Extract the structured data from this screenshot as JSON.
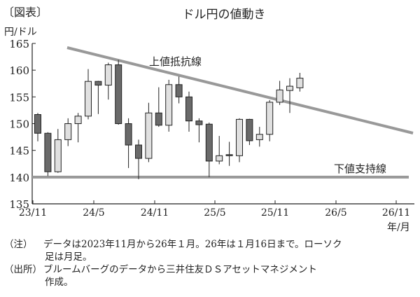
{
  "figure_label": "〔図表〕",
  "title": "ドル円の値動き",
  "y_unit": "円/ドル",
  "x_unit": "年/月",
  "annotations": {
    "resistance": "上値抵抗線",
    "support": "下値支持線"
  },
  "notes": [
    {
      "tag": "（注）",
      "text": "データは2023年11月から26年１月。26年は１月16日まで。ローソク",
      "cont": "足は月足。"
    },
    {
      "tag": "（出所）",
      "text": "ブルームバーグのデータから三井住友ＤＳアセットマネジメント",
      "cont": "作成。"
    }
  ],
  "colors": {
    "up_fill": "#e0e0e0",
    "down_fill": "#6a6a6a",
    "trend_line": "#999999",
    "axis": "#222222"
  },
  "chart_data": {
    "type": "candlestick",
    "title": "ドル円の値動き",
    "xlabel": "年/月",
    "ylabel": "円/ドル",
    "ylim": [
      135,
      165
    ],
    "yticks": [
      135,
      140,
      145,
      150,
      155,
      160,
      165
    ],
    "xticks": [
      "23/11",
      "24/5",
      "24/11",
      "25/5",
      "25/11",
      "26/5",
      "26/11"
    ],
    "grid": false,
    "categories": [
      "23/11",
      "23/12",
      "24/1",
      "24/2",
      "24/3",
      "24/4",
      "24/5",
      "24/6",
      "24/7",
      "24/8",
      "24/9",
      "24/10",
      "24/11",
      "24/12",
      "25/1",
      "25/2",
      "25/3",
      "25/4",
      "25/5",
      "25/6",
      "25/7",
      "25/8",
      "25/9",
      "25/10",
      "25/11",
      "25/12",
      "26/1"
    ],
    "open": [
      151.7,
      148.2,
      141.0,
      147.0,
      150.0,
      151.4,
      157.9,
      157.2,
      161.0,
      150.0,
      146.0,
      143.5,
      152.0,
      149.7,
      157.3,
      155.0,
      150.5,
      149.9,
      143.0,
      144.2,
      144.0,
      150.8,
      147.0,
      148.0,
      154.0,
      156.2,
      156.7
    ],
    "high": [
      152.0,
      148.4,
      149.0,
      151.0,
      152.0,
      160.2,
      158.0,
      161.4,
      161.9,
      151.0,
      147.0,
      153.9,
      156.8,
      158.2,
      158.8,
      156.0,
      151.0,
      150.2,
      147.7,
      146.6,
      151.0,
      150.9,
      149.4,
      154.4,
      158.0,
      158.5,
      159.5
    ],
    "low": [
      146.7,
      140.2,
      140.8,
      145.8,
      146.5,
      150.8,
      151.8,
      154.5,
      149.8,
      141.7,
      139.6,
      142.8,
      149.4,
      148.5,
      153.8,
      148.5,
      146.5,
      140.0,
      142.4,
      142.1,
      142.8,
      146.0,
      145.7,
      146.7,
      153.5,
      152.0,
      156.0
    ],
    "close": [
      148.2,
      141.0,
      147.0,
      150.0,
      151.4,
      157.9,
      157.2,
      161.0,
      150.0,
      146.0,
      143.5,
      152.0,
      149.7,
      157.3,
      155.0,
      150.5,
      149.8,
      143.0,
      144.0,
      144.0,
      150.8,
      146.8,
      148.0,
      154.0,
      156.3,
      157.0,
      158.5
    ],
    "trend_lines": [
      {
        "name": "上値抵抗線",
        "from": {
          "x": "24/2",
          "y": 164.2
        },
        "to": {
          "x": "26/12",
          "y": 148.2
        }
      },
      {
        "name": "下値支持線",
        "from": {
          "x": "23/11",
          "y": 140
        },
        "to": {
          "x": "26/12",
          "y": 140
        }
      }
    ]
  }
}
